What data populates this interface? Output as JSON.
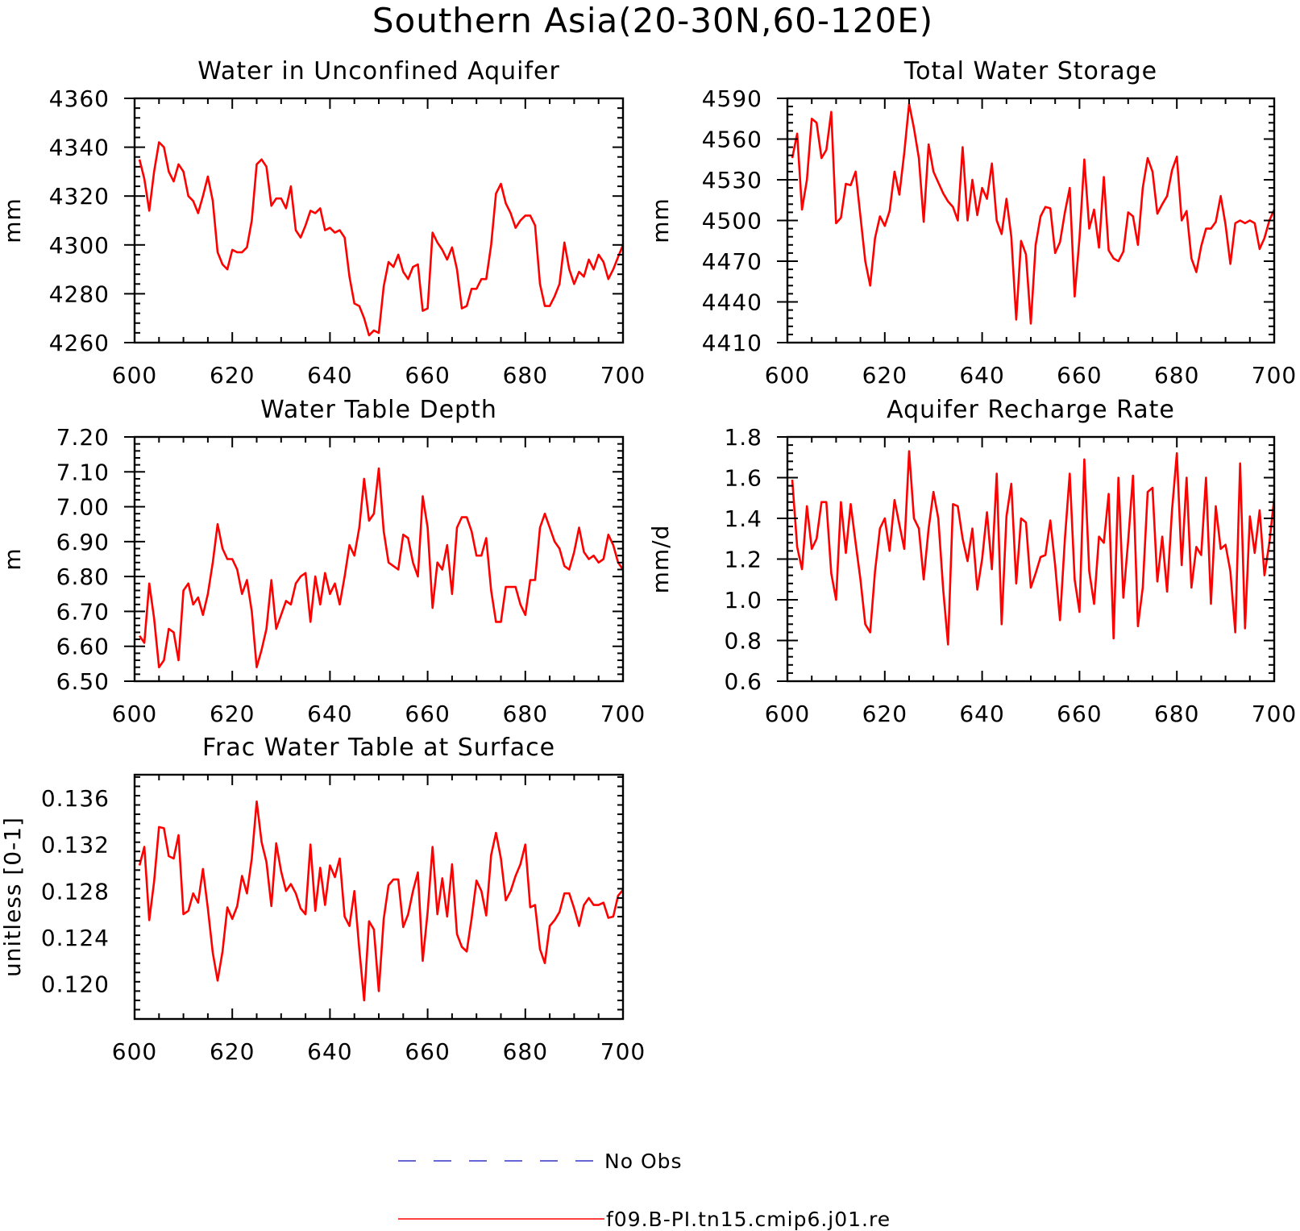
{
  "figure": {
    "title": "Southern Asia(20-30N,60-120E)",
    "legend": [
      {
        "name": "No Obs",
        "color": "#3333cc",
        "style": "dashed"
      },
      {
        "name": "f09.B-PI.tn15.cmip6.j01.re",
        "color": "#ff0000",
        "style": "solid"
      }
    ]
  },
  "chart_data": [
    {
      "type": "line",
      "title": "Water in Unconfined Aquifer",
      "ylabel": "mm",
      "xlim": [
        600,
        700
      ],
      "ylim": [
        4260,
        4360
      ],
      "xticks": [
        600,
        620,
        640,
        660,
        680,
        700
      ],
      "yticks": [
        4260,
        4280,
        4300,
        4320,
        4340,
        4360
      ],
      "ytick_labels": [
        "4260",
        "4280",
        "4300",
        "4320",
        "4340",
        "4360"
      ],
      "x_start": 601,
      "series": [
        {
          "name": "f09.B-PI.tn15.cmip6.j01.re",
          "color": "#ff0000",
          "values": [
            4335,
            4327,
            4314,
            4330,
            4342,
            4340,
            4330,
            4326,
            4333,
            4330,
            4320,
            4318,
            4313,
            4320,
            4328,
            4318,
            4297,
            4292,
            4290,
            4298,
            4297,
            4297,
            4299,
            4310,
            4333,
            4335,
            4332,
            4316,
            4319,
            4319,
            4315,
            4324,
            4306,
            4303,
            4308,
            4314,
            4313,
            4315,
            4306,
            4307,
            4305,
            4306,
            4303,
            4287,
            4276,
            4275,
            4270,
            4263,
            4265,
            4264,
            4283,
            4293,
            4291,
            4296,
            4289,
            4286,
            4291,
            4292,
            4273,
            4274,
            4305,
            4301,
            4298,
            4294,
            4299,
            4290,
            4274,
            4275,
            4282,
            4282,
            4286,
            4286,
            4300,
            4321,
            4325,
            4317,
            4313,
            4307,
            4310,
            4312,
            4312,
            4308,
            4284,
            4275,
            4275,
            4279,
            4284,
            4301,
            4290,
            4284,
            4289,
            4287,
            4294,
            4290,
            4296,
            4293,
            4286,
            4290,
            4295,
            4300
          ]
        }
      ]
    },
    {
      "type": "line",
      "title": "Total Water Storage",
      "ylabel": "mm",
      "xlim": [
        600,
        700
      ],
      "ylim": [
        4410,
        4590
      ],
      "xticks": [
        600,
        620,
        640,
        660,
        680,
        700
      ],
      "yticks": [
        4410,
        4440,
        4470,
        4500,
        4530,
        4560,
        4590
      ],
      "ytick_labels": [
        "4410",
        "4440",
        "4470",
        "4500",
        "4530",
        "4560",
        "4590"
      ],
      "x_start": 601,
      "series": [
        {
          "name": "f09.B-PI.tn15.cmip6.j01.re",
          "color": "#ff0000",
          "values": [
            4546,
            4564,
            4508,
            4530,
            4575,
            4572,
            4546,
            4552,
            4580,
            4498,
            4502,
            4527,
            4526,
            4536,
            4503,
            4470,
            4452,
            4487,
            4503,
            4496,
            4507,
            4536,
            4519,
            4550,
            4586,
            4568,
            4546,
            4499,
            4556,
            4536,
            4528,
            4520,
            4514,
            4510,
            4500,
            4554,
            4500,
            4530,
            4504,
            4524,
            4516,
            4542,
            4500,
            4490,
            4516,
            4488,
            4427,
            4485,
            4475,
            4424,
            4482,
            4503,
            4510,
            4509,
            4476,
            4484,
            4506,
            4524,
            4444,
            4487,
            4545,
            4494,
            4508,
            4480,
            4532,
            4478,
            4472,
            4470,
            4477,
            4506,
            4503,
            4482,
            4524,
            4546,
            4536,
            4505,
            4512,
            4518,
            4537,
            4547,
            4500,
            4507,
            4472,
            4462,
            4481,
            4494,
            4494,
            4499,
            4518,
            4497,
            4468,
            4498,
            4500,
            4498,
            4500,
            4498,
            4479,
            4487,
            4500,
            4508
          ]
        }
      ]
    },
    {
      "type": "line",
      "title": "Water Table Depth",
      "ylabel": "m",
      "xlim": [
        600,
        700
      ],
      "ylim": [
        6.5,
        7.2
      ],
      "xticks": [
        600,
        620,
        640,
        660,
        680,
        700
      ],
      "yticks": [
        6.5,
        6.6,
        6.7,
        6.8,
        6.9,
        7.0,
        7.1,
        7.2
      ],
      "ytick_labels": [
        "6.50",
        "6.60",
        "6.70",
        "6.80",
        "6.90",
        "7.00",
        "7.10",
        "7.20"
      ],
      "x_start": 601,
      "series": [
        {
          "name": "f09.B-PI.tn15.cmip6.j01.re",
          "color": "#ff0000",
          "values": [
            6.63,
            6.61,
            6.78,
            6.68,
            6.54,
            6.56,
            6.65,
            6.64,
            6.56,
            6.76,
            6.78,
            6.72,
            6.74,
            6.69,
            6.75,
            6.84,
            6.95,
            6.88,
            6.85,
            6.85,
            6.82,
            6.75,
            6.79,
            6.7,
            6.54,
            6.59,
            6.65,
            6.79,
            6.65,
            6.69,
            6.73,
            6.72,
            6.78,
            6.8,
            6.81,
            6.67,
            6.8,
            6.72,
            6.81,
            6.75,
            6.78,
            6.72,
            6.8,
            6.89,
            6.86,
            6.94,
            7.08,
            6.96,
            6.98,
            7.11,
            6.93,
            6.84,
            6.83,
            6.82,
            6.92,
            6.91,
            6.84,
            6.8,
            7.03,
            6.94,
            6.71,
            6.84,
            6.82,
            6.89,
            6.75,
            6.94,
            6.97,
            6.97,
            6.93,
            6.86,
            6.86,
            6.91,
            6.76,
            6.67,
            6.67,
            6.77,
            6.77,
            6.77,
            6.72,
            6.69,
            6.79,
            6.79,
            6.94,
            6.98,
            6.94,
            6.9,
            6.88,
            6.83,
            6.82,
            6.87,
            6.94,
            6.87,
            6.85,
            6.86,
            6.84,
            6.85,
            6.92,
            6.89,
            6.84,
            6.82
          ]
        }
      ]
    },
    {
      "type": "line",
      "title": "Aquifer Recharge Rate",
      "ylabel": "mm/d",
      "xlim": [
        600,
        700
      ],
      "ylim": [
        0.6,
        1.8
      ],
      "xticks": [
        600,
        620,
        640,
        660,
        680,
        700
      ],
      "yticks": [
        0.6,
        0.8,
        1.0,
        1.2,
        1.4,
        1.6,
        1.8
      ],
      "ytick_labels": [
        "0.6",
        "0.8",
        "1.0",
        "1.2",
        "1.4",
        "1.6",
        "1.8"
      ],
      "x_start": 601,
      "series": [
        {
          "name": "f09.B-PI.tn15.cmip6.j01.re",
          "color": "#ff0000",
          "values": [
            1.59,
            1.26,
            1.15,
            1.46,
            1.25,
            1.3,
            1.48,
            1.48,
            1.13,
            1.0,
            1.48,
            1.23,
            1.47,
            1.28,
            1.1,
            0.88,
            0.84,
            1.14,
            1.35,
            1.4,
            1.24,
            1.49,
            1.37,
            1.25,
            1.73,
            1.4,
            1.35,
            1.1,
            1.35,
            1.53,
            1.4,
            1.05,
            0.78,
            1.47,
            1.46,
            1.3,
            1.19,
            1.35,
            1.05,
            1.2,
            1.43,
            1.15,
            1.62,
            0.88,
            1.41,
            1.57,
            1.08,
            1.4,
            1.38,
            1.06,
            1.13,
            1.21,
            1.22,
            1.39,
            1.17,
            0.9,
            1.3,
            1.62,
            1.1,
            0.94,
            1.69,
            1.14,
            0.98,
            1.31,
            1.28,
            1.52,
            0.81,
            1.6,
            1.01,
            1.29,
            1.61,
            0.87,
            1.06,
            1.53,
            1.55,
            1.09,
            1.31,
            1.04,
            1.44,
            1.72,
            1.17,
            1.6,
            1.06,
            1.26,
            1.22,
            1.6,
            0.98,
            1.46,
            1.25,
            1.27,
            1.14,
            0.84,
            1.67,
            0.86,
            1.41,
            1.23,
            1.44,
            1.12,
            1.28,
            1.5
          ]
        }
      ]
    },
    {
      "type": "line",
      "title": "Frac Water Table at Surface",
      "ylabel": "unitless [0-1]",
      "xlim": [
        600,
        700
      ],
      "ylim": [
        0.117,
        0.138
      ],
      "xticks": [
        600,
        620,
        640,
        660,
        680,
        700
      ],
      "yticks": [
        0.12,
        0.124,
        0.128,
        0.132,
        0.136
      ],
      "ytick_labels": [
        "0.120",
        "0.124",
        "0.128",
        "0.132",
        "0.136"
      ],
      "x_start": 601,
      "series": [
        {
          "name": "f09.B-PI.tn15.cmip6.j01.re",
          "color": "#ff0000",
          "values": [
            0.1302,
            0.1318,
            0.1255,
            0.1288,
            0.1335,
            0.1334,
            0.131,
            0.1308,
            0.1328,
            0.126,
            0.1263,
            0.1278,
            0.127,
            0.1299,
            0.1265,
            0.1227,
            0.1203,
            0.1228,
            0.1266,
            0.1256,
            0.1267,
            0.1293,
            0.1278,
            0.1308,
            0.1357,
            0.1322,
            0.1305,
            0.1267,
            0.1321,
            0.1297,
            0.128,
            0.1286,
            0.1278,
            0.1265,
            0.126,
            0.132,
            0.1263,
            0.13,
            0.1268,
            0.1302,
            0.1292,
            0.1308,
            0.1258,
            0.125,
            0.128,
            0.123,
            0.1186,
            0.1254,
            0.1247,
            0.1194,
            0.1256,
            0.1285,
            0.129,
            0.129,
            0.1249,
            0.126,
            0.128,
            0.1296,
            0.122,
            0.1262,
            0.1318,
            0.126,
            0.1291,
            0.1258,
            0.1303,
            0.1243,
            0.1232,
            0.1228,
            0.1256,
            0.1289,
            0.128,
            0.1259,
            0.1311,
            0.133,
            0.1308,
            0.1272,
            0.128,
            0.1293,
            0.1303,
            0.132,
            0.1266,
            0.1268,
            0.123,
            0.1218,
            0.125,
            0.1255,
            0.1262,
            0.1278,
            0.1278,
            0.1265,
            0.125,
            0.1268,
            0.1274,
            0.1268,
            0.1268,
            0.127,
            0.1257,
            0.1258,
            0.1276,
            0.1281
          ]
        }
      ]
    }
  ]
}
